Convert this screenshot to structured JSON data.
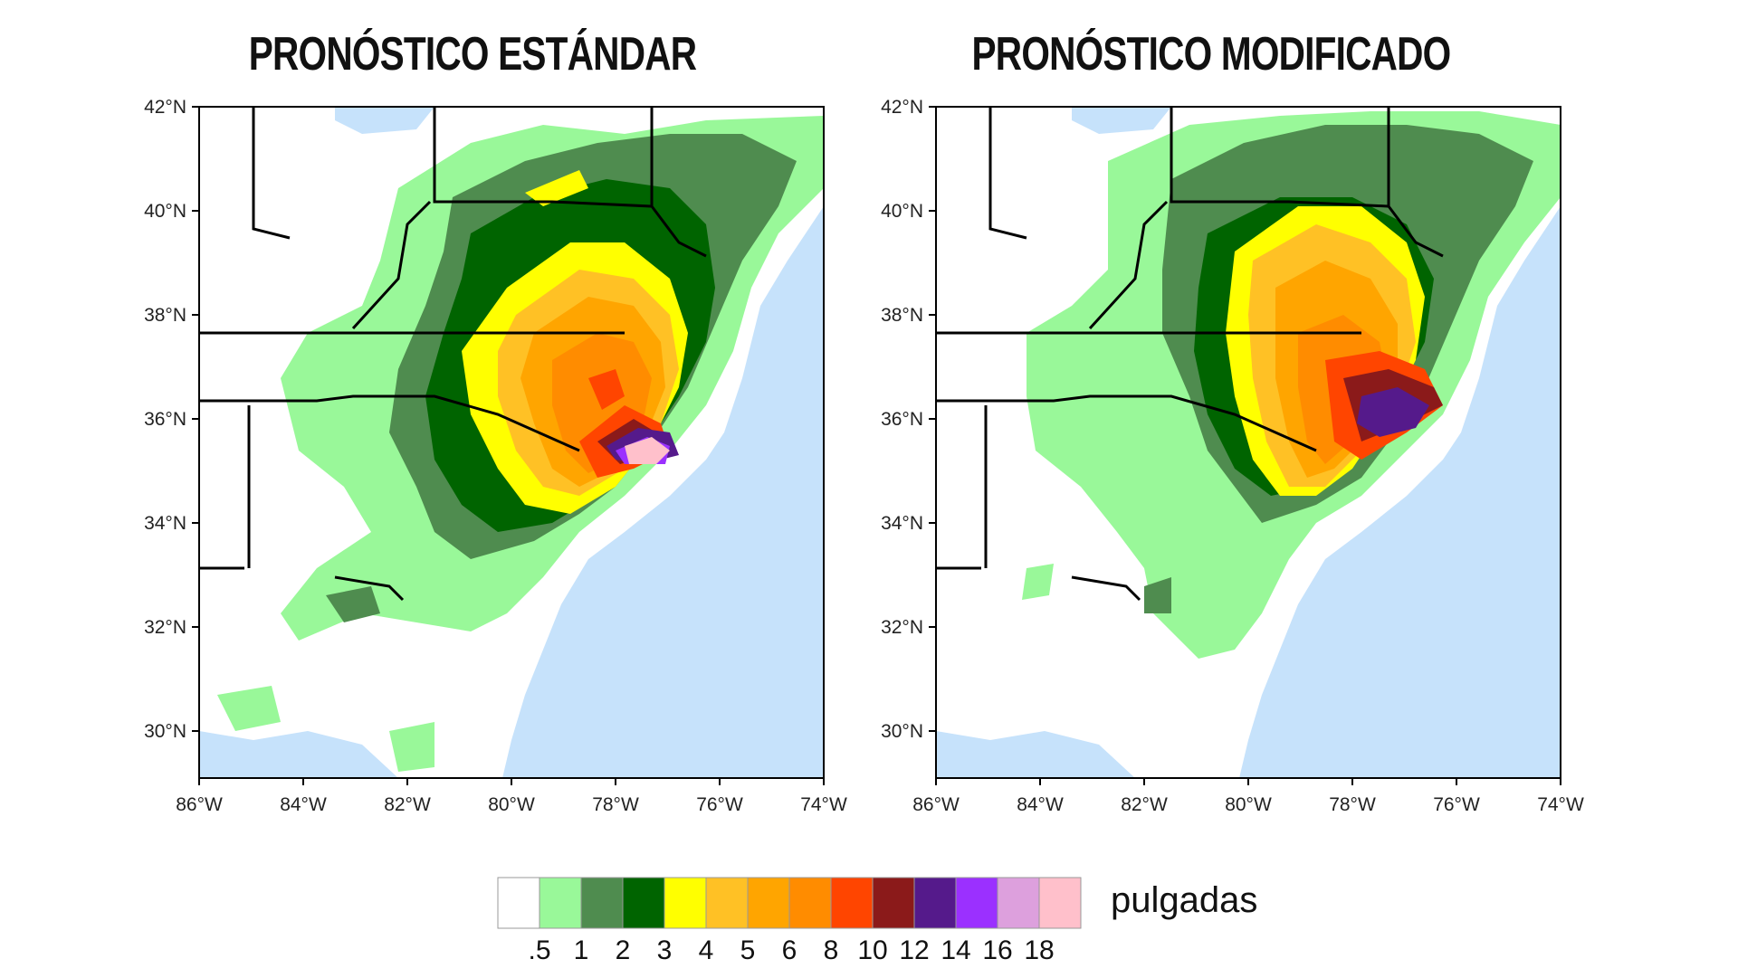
{
  "panels": [
    {
      "title": "PRONÓSTICO ESTÁNDAR"
    },
    {
      "title": "PRONÓSTICO MODIFICADO"
    }
  ],
  "axes": {
    "lat_labels": [
      "42°N",
      "40°N",
      "38°N",
      "36°N",
      "34°N",
      "32°N",
      "30°N"
    ],
    "lon_labels": [
      "86°W",
      "84°W",
      "82°W",
      "80°W",
      "78°W",
      "76°W",
      "74°W"
    ]
  },
  "legend": {
    "unit": "pulgadas",
    "colors": [
      "#ffffff",
      "#99f899",
      "#4f8c4f",
      "#006400",
      "#ffff00",
      "#ffc125",
      "#ffa500",
      "#ff8c00",
      "#ff4500",
      "#8b1a1a",
      "#551a8b",
      "#9b30ff",
      "#dda0dd",
      "#ffc0cb"
    ],
    "tick_labels": [
      ".5",
      "1",
      "2",
      "3",
      "4",
      "5",
      "6",
      "8",
      "10",
      "12",
      "14",
      "16",
      "18"
    ]
  },
  "colors": {
    "ocean": "#c6e2fb",
    "land": "#ffffff",
    "border": "#000000"
  }
}
